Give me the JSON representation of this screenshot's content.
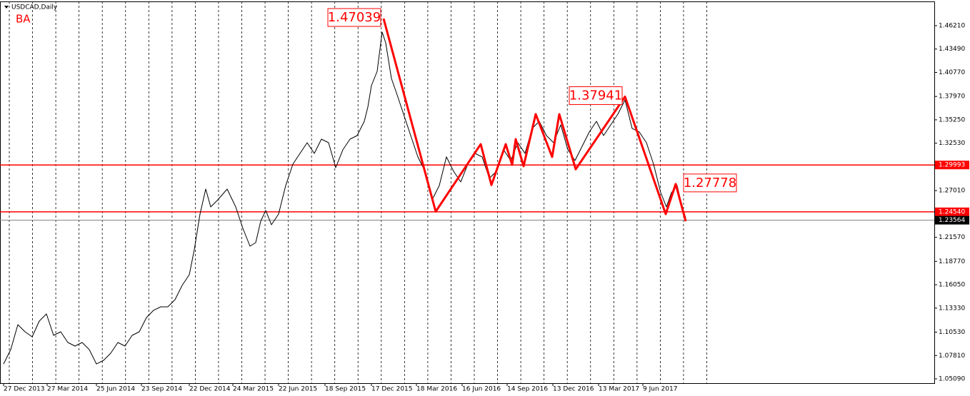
{
  "chart_data": {
    "type": "line",
    "title": "USDCAD,Daily",
    "indicator": "BA",
    "xlim": [
      -5,
      1303
    ],
    "ylim": [
      1.04592,
      1.49034
    ],
    "xticks": [
      {
        "value": 0,
        "label": "27 Dec 2013"
      },
      {
        "value": 61,
        "label": "27 Mar 2014"
      },
      {
        "value": 130,
        "label": "25 Jun 2014"
      },
      {
        "value": 193,
        "label": "23 Sep 2014"
      },
      {
        "value": 260,
        "label": "22 Dec 2014"
      },
      {
        "value": 321,
        "label": "24 Mar 2015"
      },
      {
        "value": 385,
        "label": "22 Jun 2015"
      },
      {
        "value": 450,
        "label": "18 Sep 2015"
      },
      {
        "value": 515,
        "label": "17 Dec 2015"
      },
      {
        "value": 578,
        "label": "18 Mar 2016"
      },
      {
        "value": 642,
        "label": "16 Jun 2016"
      },
      {
        "value": 705,
        "label": "14 Sep 2016"
      },
      {
        "value": 769,
        "label": "13 Dec 2016"
      },
      {
        "value": 833,
        "label": "13 Mar 2017"
      },
      {
        "value": 895,
        "label": "9 Jun 2017"
      }
    ],
    "yticks": [
      {
        "value": 1.4621,
        "label": "1.46210"
      },
      {
        "value": 1.4349,
        "label": "1.43490"
      },
      {
        "value": 1.4077,
        "label": "1.40770"
      },
      {
        "value": 1.3797,
        "label": "1.37970"
      },
      {
        "value": 1.3525,
        "label": "1.35250"
      },
      {
        "value": 1.3253,
        "label": "1.32530"
      },
      {
        "value": 1.2701,
        "label": "1.27010"
      },
      {
        "value": 1.2157,
        "label": "1.21570"
      },
      {
        "value": 1.1877,
        "label": "1.18770"
      },
      {
        "value": 1.1605,
        "label": "1.16050"
      },
      {
        "value": 1.1333,
        "label": "1.13330"
      },
      {
        "value": 1.1053,
        "label": "1.10530"
      },
      {
        "value": 1.0781,
        "label": "1.07810"
      },
      {
        "value": 1.0509,
        "label": "1.05090"
      }
    ],
    "series": [
      {
        "color": "#000000",
        "x": [
          0,
          10,
          20,
          30,
          40,
          50,
          60,
          70,
          80,
          90,
          100,
          110,
          120,
          130,
          140,
          150,
          160,
          170,
          180,
          190,
          200,
          210,
          220,
          230,
          240,
          250,
          260,
          267,
          275,
          283,
          290,
          300,
          313,
          325,
          335,
          345,
          353,
          360,
          367,
          375,
          385,
          395,
          405,
          415,
          425,
          435,
          445,
          455,
          465,
          475,
          485,
          495,
          505,
          510,
          515,
          523,
          530,
          535,
          543,
          550,
          560,
          570,
          580,
          590,
          600,
          610,
          620,
          630,
          640,
          650,
          660,
          670,
          680,
          690,
          700,
          710,
          720,
          730,
          740,
          750,
          760,
          770,
          780,
          790,
          800,
          810,
          820,
          830,
          840,
          850,
          860,
          870,
          880,
          890,
          900,
          910,
          920,
          928,
          935,
          943,
          950,
          955
        ],
        "values": [
          1.0683,
          1.085,
          1.114,
          1.1057,
          1.0999,
          1.1182,
          1.1265,
          1.1016,
          1.1057,
          1.0933,
          1.0891,
          1.0933,
          1.085,
          1.0683,
          1.0725,
          1.0808,
          1.0933,
          1.0891,
          1.1016,
          1.1057,
          1.1223,
          1.1307,
          1.1348,
          1.1348,
          1.1431,
          1.1597,
          1.1722,
          1.2013,
          1.2428,
          1.2719,
          1.2511,
          1.2594,
          1.2719,
          1.2511,
          1.2262,
          1.2054,
          1.2096,
          1.2345,
          1.247,
          1.2303,
          1.2428,
          1.276,
          1.3009,
          1.3134,
          1.3259,
          1.3134,
          1.33,
          1.3259,
          1.2968,
          1.3176,
          1.33,
          1.3342,
          1.3508,
          1.3674,
          1.3923,
          1.4089,
          1.4546,
          1.4422,
          1.4006,
          1.384,
          1.3591,
          1.3342,
          1.3093,
          1.2926,
          1.2594,
          1.276,
          1.3093,
          1.2926,
          1.2802,
          1.3009,
          1.3134,
          1.3093,
          1.2843,
          1.2926,
          1.3176,
          1.3051,
          1.3259,
          1.3134,
          1.3425,
          1.3508,
          1.3342,
          1.3259,
          1.3466,
          1.3176,
          1.3051,
          1.3217,
          1.3383,
          1.3508,
          1.3342,
          1.3466,
          1.3591,
          1.3757,
          1.3425,
          1.3383,
          1.3259,
          1.3009,
          1.2677,
          1.2511,
          1.2677,
          1.276,
          1.2511,
          1.2386
        ]
      },
      {
        "color": "#ff0000",
        "x": [
          532,
          605,
          668,
          683,
          703,
          712,
          717,
          728,
          745,
          768,
          778,
          801,
          870,
          927,
          941,
          955
        ],
        "values": [
          1.47039,
          1.2457,
          1.3241,
          1.2766,
          1.3241,
          1.3001,
          1.33,
          1.2985,
          1.3591,
          1.3093,
          1.3591,
          1.295,
          1.37941,
          1.2428,
          1.27778,
          1.2345
        ],
        "value_labels": [
          "1.47039",
          null,
          null,
          null,
          null,
          null,
          null,
          null,
          null,
          null,
          null,
          null,
          "1.37941",
          null,
          "1.27778",
          null
        ]
      }
    ],
    "hlines": [
      {
        "value": 1.29993,
        "label": "1.29993",
        "color": "#ff0000"
      },
      {
        "value": 1.2454,
        "label": "1.24540",
        "color": "#ff0000"
      },
      {
        "value": 1.23564,
        "label": "1.23564",
        "color": "#808080"
      }
    ]
  }
}
